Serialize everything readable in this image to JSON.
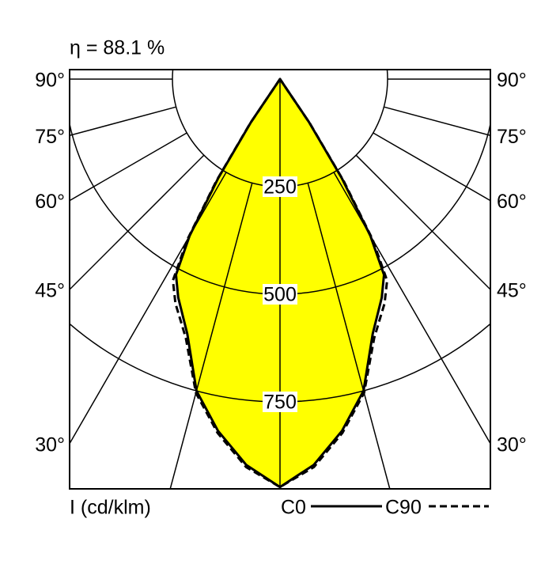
{
  "chart_data": {
    "type": "polar",
    "efficiency": "η = 88.1 %",
    "unit_label": "I (cd/klm)",
    "rlim": [
      0,
      1000
    ],
    "rticks": [
      250,
      500,
      750
    ],
    "radial_lines": [
      0,
      15,
      30,
      45,
      60,
      75,
      90
    ],
    "angle_ticks": [
      {
        "value": 90,
        "label": "90°"
      },
      {
        "value": 75,
        "label": "75°"
      },
      {
        "value": 60,
        "label": "60°"
      },
      {
        "value": 45,
        "label": "45°"
      },
      {
        "value": 30,
        "label": "30°"
      }
    ],
    "angles": [
      -40,
      -34,
      -32,
      -30,
      -28,
      -25,
      -20,
      -15,
      -10,
      -5,
      0,
      5,
      10,
      15,
      20,
      25,
      28,
      30,
      32,
      34,
      40
    ],
    "series": [
      {
        "name": "C0",
        "color": "#000000",
        "fill": "#ffff00",
        "dash": false,
        "values": [
          0,
          120,
          270,
          420,
          515,
          560,
          630,
          750,
          830,
          900,
          948,
          900,
          830,
          750,
          630,
          560,
          515,
          420,
          270,
          120,
          0
        ]
      },
      {
        "name": "C90",
        "color": "#000000",
        "dash": true,
        "values": [
          0,
          125,
          280,
          430,
          530,
          575,
          640,
          755,
          835,
          905,
          948,
          905,
          835,
          755,
          640,
          575,
          530,
          430,
          280,
          125,
          0
        ]
      }
    ]
  }
}
